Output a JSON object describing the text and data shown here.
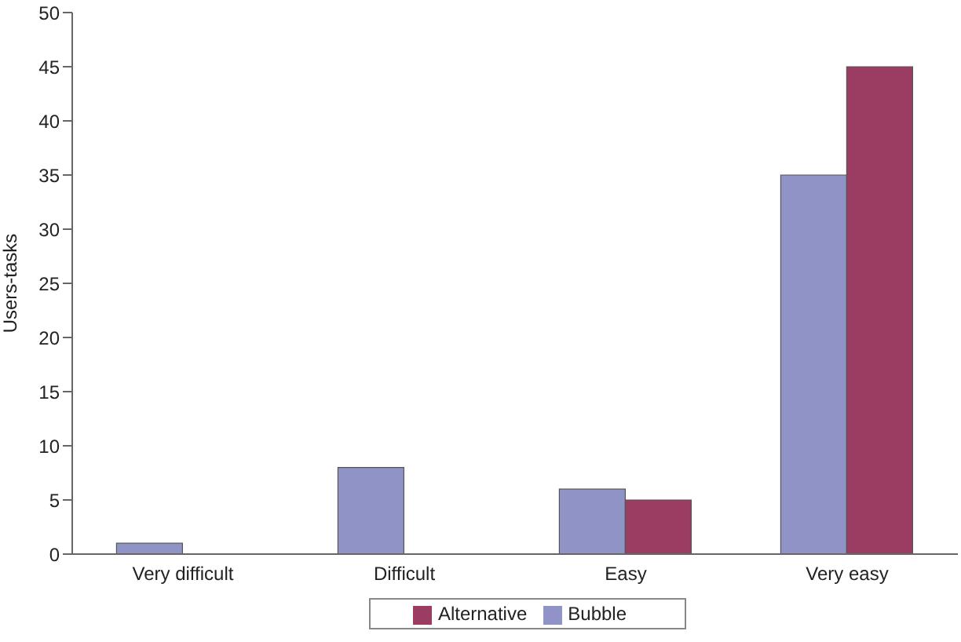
{
  "chart_data": {
    "type": "bar",
    "ylabel": "Users-tasks",
    "categories": [
      "Very difficult",
      "Difficult",
      "Easy",
      "Very easy"
    ],
    "series": [
      {
        "name": "Bubble",
        "color": "#8f93c6",
        "values": [
          1,
          8,
          6,
          35
        ]
      },
      {
        "name": "Alternative",
        "color": "#9b3d62",
        "values": [
          0,
          0,
          5,
          45
        ]
      }
    ],
    "ylim": [
      0,
      50
    ],
    "yticks": [
      0,
      5,
      10,
      15,
      20,
      25,
      30,
      35,
      40,
      45,
      50
    ],
    "grid": false,
    "legend": "bottom"
  }
}
